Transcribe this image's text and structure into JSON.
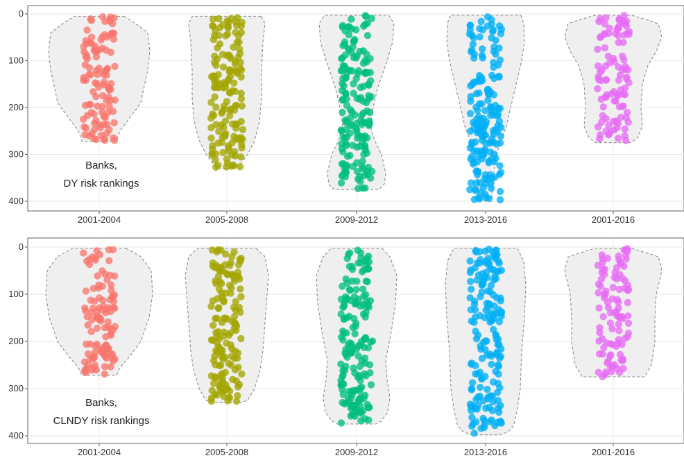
{
  "chart_data": [
    {
      "type": "violin-jitter",
      "annotation": [
        "Banks,",
        "DY risk rankings"
      ],
      "categories": [
        "2001-2004",
        "2005-2008",
        "2009-2012",
        "2013-2016",
        "2001-2016"
      ],
      "ylim": [
        0,
        400
      ],
      "y_inverted": true,
      "yticks": [
        "0",
        "100",
        "200",
        "300",
        "400"
      ],
      "grid": true,
      "series": [
        {
          "color": "#F8766D",
          "range": [
            5,
            272
          ],
          "n_points": 110
        },
        {
          "color": "#A3A500",
          "range": [
            5,
            330
          ],
          "n_points": 150
        },
        {
          "color": "#00BF7D",
          "range": [
            3,
            375
          ],
          "n_points": 170
        },
        {
          "color": "#00B0F6",
          "range": [
            3,
            400
          ],
          "n_points": 175
        },
        {
          "color": "#E76BF3",
          "range": [
            3,
            275
          ],
          "n_points": 100
        }
      ]
    },
    {
      "type": "violin-jitter",
      "annotation": [
        "Banks,",
        "CLNDY risk rankings"
      ],
      "categories": [
        "2001-2004",
        "2005-2008",
        "2009-2012",
        "2013-2016",
        "2001-2016"
      ],
      "ylim": [
        0,
        400
      ],
      "y_inverted": true,
      "yticks": [
        "0",
        "100",
        "200",
        "300",
        "400"
      ],
      "grid": true,
      "series": [
        {
          "color": "#F8766D",
          "range": [
            3,
            272
          ],
          "n_points": 110
        },
        {
          "color": "#A3A500",
          "range": [
            3,
            330
          ],
          "n_points": 150
        },
        {
          "color": "#00BF7D",
          "range": [
            3,
            375
          ],
          "n_points": 170
        },
        {
          "color": "#00B0F6",
          "range": [
            3,
            398
          ],
          "n_points": 175
        },
        {
          "color": "#E76BF3",
          "range": [
            3,
            275
          ],
          "n_points": 100
        }
      ]
    }
  ]
}
